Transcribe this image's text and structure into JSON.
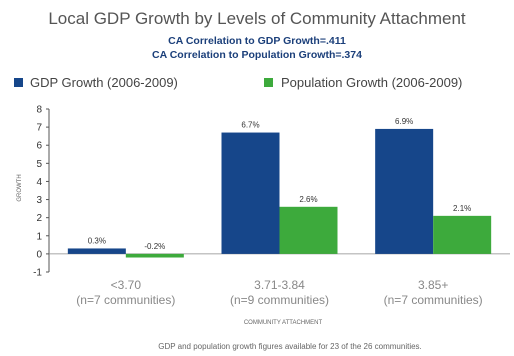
{
  "chart_data": {
    "type": "bar",
    "title": "Local GDP Growth by Levels of Community Attachment",
    "subtitle_lines": [
      "CA Correlation to GDP Growth=.411",
      "CA Correlation to Population Growth=.374"
    ],
    "categories": [
      [
        "<3.70",
        "(n=7 communities)"
      ],
      [
        "3.71-3.84",
        "(n=9 communities)"
      ],
      [
        "3.85+",
        "(n=7 communities)"
      ]
    ],
    "series": [
      {
        "name": "GDP Growth (2006-2009)",
        "color": "#16468a",
        "values": [
          0.3,
          6.7,
          6.9
        ],
        "labels": [
          "0.3%",
          "6.7%",
          "6.9%"
        ]
      },
      {
        "name": "Population Growth (2006-2009)",
        "color": "#3daa3c",
        "values": [
          -0.2,
          2.6,
          2.1
        ],
        "labels": [
          "-0.2%",
          "2.6%",
          "2.1%"
        ]
      }
    ],
    "ylabel": "GROWTH",
    "xlabel": "COMMUNITY ATTACHMENT",
    "ylim": [
      -1,
      8
    ],
    "yticks": [
      -1,
      0,
      1,
      2,
      3,
      4,
      5,
      6,
      7,
      8
    ],
    "grid": false,
    "legend_position": "top",
    "note": "GDP and population growth figures available for 23 of the 26 communities."
  }
}
